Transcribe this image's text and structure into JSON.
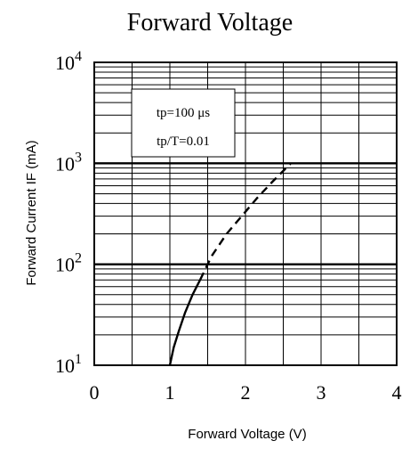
{
  "chart_data": {
    "type": "line",
    "title": "Forward Voltage",
    "xlabel": "Forward Voltage (V)",
    "ylabel": "Forward Current IF (mA)",
    "xlim": [
      0,
      4
    ],
    "ylim": [
      10,
      10000
    ],
    "y_scale": "log",
    "grid": true,
    "x_ticks": [
      {
        "value": 0,
        "label": "0"
      },
      {
        "value": 1,
        "label": "1"
      },
      {
        "value": 2,
        "label": "2"
      },
      {
        "value": 3,
        "label": "3"
      },
      {
        "value": 4,
        "label": "4"
      }
    ],
    "y_ticks": [
      {
        "value": 10,
        "base": "10",
        "exp": "1"
      },
      {
        "value": 100,
        "base": "10",
        "exp": "2"
      },
      {
        "value": 1000,
        "base": "10",
        "exp": "3"
      },
      {
        "value": 10000,
        "base": "10",
        "exp": "4"
      }
    ],
    "annotations": [
      "tp=100 μs",
      "tp/T=0.01"
    ],
    "series": [
      {
        "style": "solid",
        "x": [
          1.0,
          1.05,
          1.12,
          1.2,
          1.3,
          1.4
        ],
        "y": [
          10,
          15,
          22,
          33,
          50,
          70
        ]
      },
      {
        "style": "dashed",
        "x": [
          1.4,
          1.55,
          1.75,
          1.95,
          2.15,
          2.35,
          2.6
        ],
        "y": [
          70,
          120,
          200,
          300,
          450,
          650,
          1000
        ]
      }
    ]
  }
}
